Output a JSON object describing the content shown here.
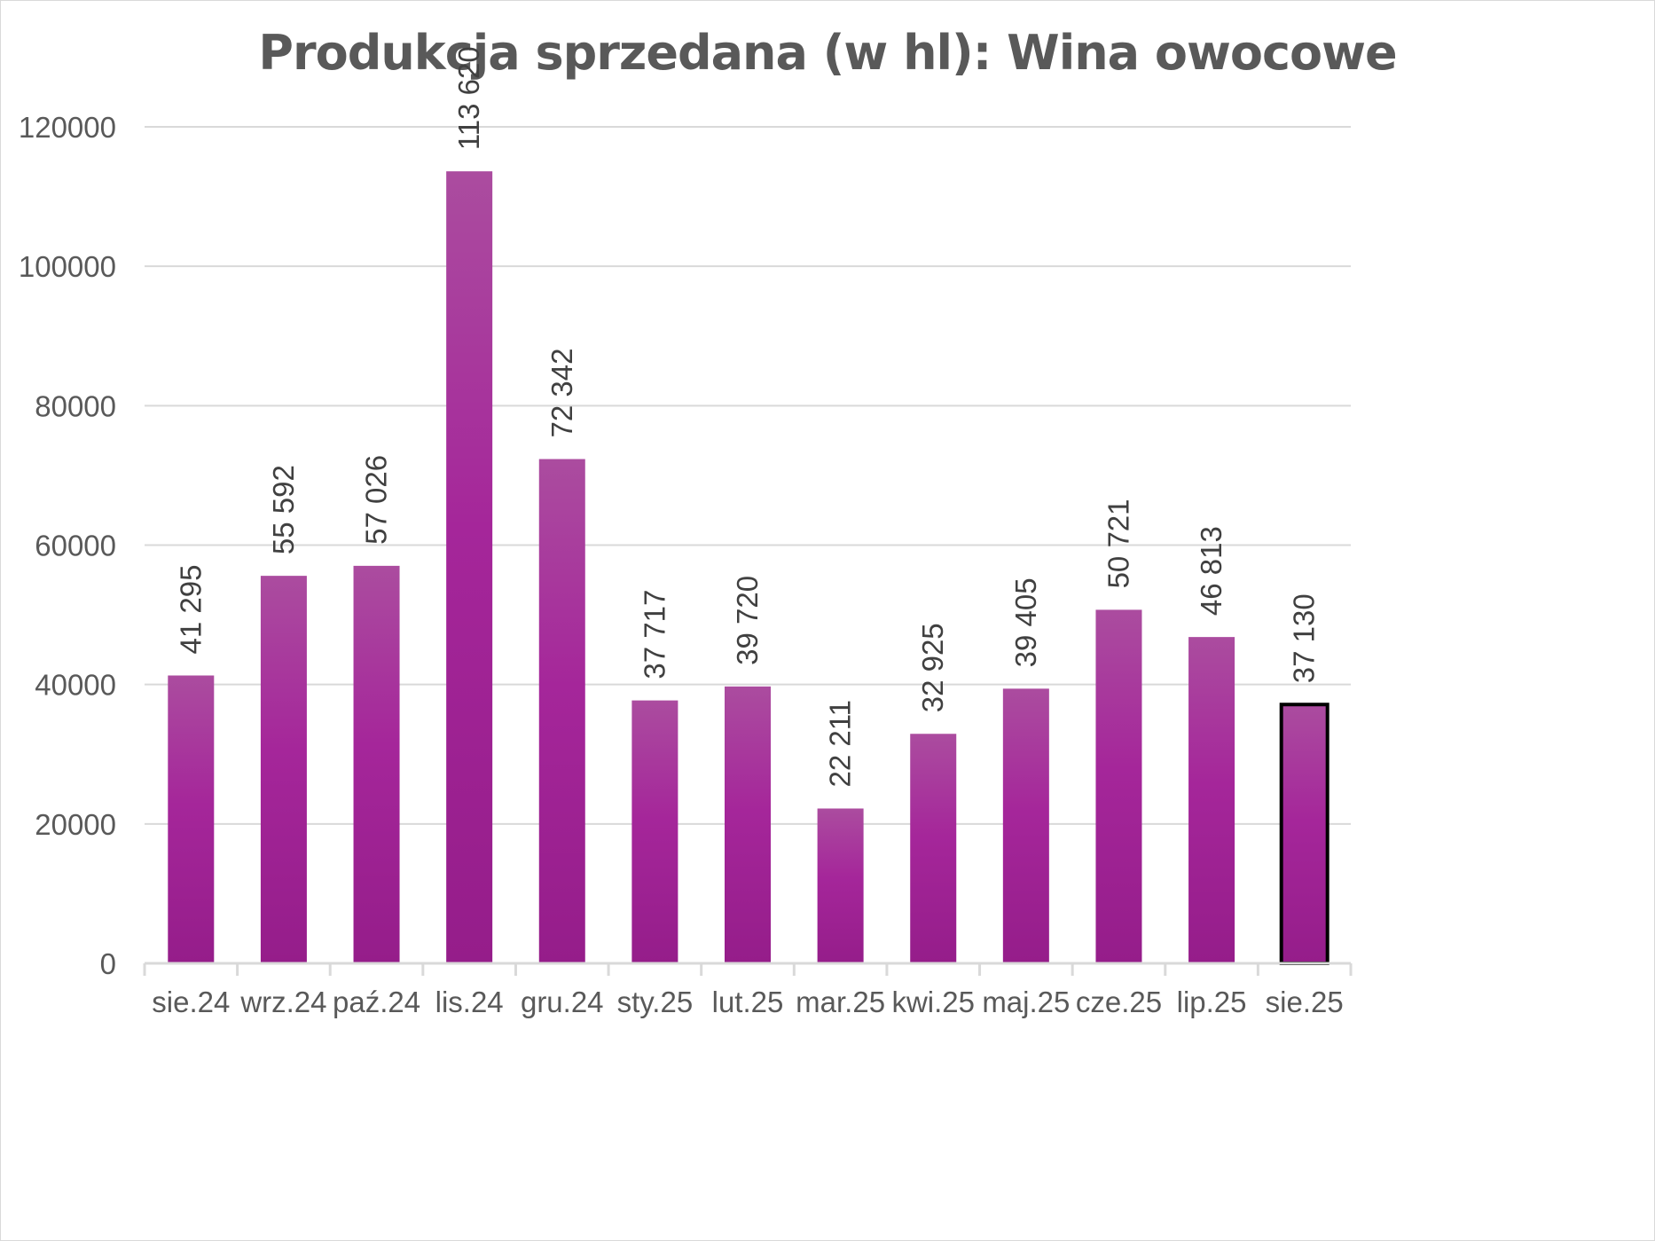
{
  "chart_data": {
    "type": "bar",
    "title": "Produkcja sprzedana (w hl): Wina owocowe",
    "xlabel": "",
    "ylabel": "",
    "categories": [
      "sie.24",
      "wrz.24",
      "paź.24",
      "lis.24",
      "gru.24",
      "sty.25",
      "lut.25",
      "mar.25",
      "kwi.25",
      "maj.25",
      "cze.25",
      "lip.25",
      "sie.25"
    ],
    "values": [
      41295,
      55592,
      57026,
      113620,
      72342,
      37717,
      39720,
      22211,
      32925,
      39405,
      50721,
      46813,
      37130
    ],
    "value_labels": [
      "41 295",
      "55 592",
      "57 026",
      "113 620",
      "72 342",
      "37 717",
      "39 720",
      "22 211",
      "32 925",
      "39 405",
      "50 721",
      "46 813",
      "37 130"
    ],
    "yticks": [
      "0",
      "20000",
      "40000",
      "60000",
      "80000",
      "100000",
      "120000"
    ],
    "ylim": [
      0,
      120000
    ],
    "grid": true,
    "legend": "none",
    "highlighted_category": "sie.25",
    "colors": {
      "bar_top": "#ab4c9f",
      "bar_mid": "#a5269a",
      "bar_bottom": "#951d8a",
      "highlight_border": "#000000",
      "grid": "#d9d9d9",
      "axis": "#d9d9d9"
    }
  }
}
